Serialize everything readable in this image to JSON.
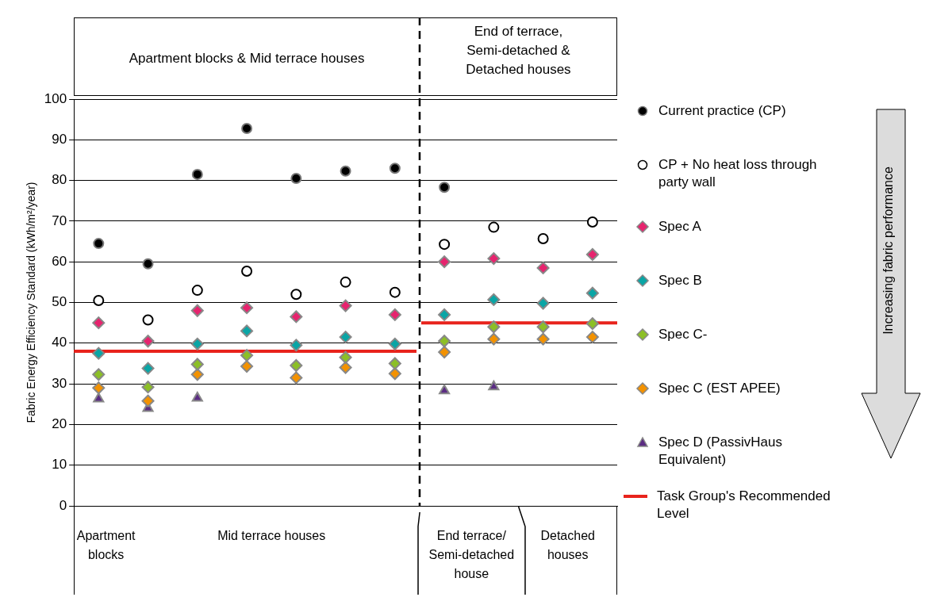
{
  "chart_data": {
    "type": "scatter",
    "ylabel": "Fabric Energy Efficiency Standard (kWh/m²/year)",
    "categories": [
      null,
      null,
      null,
      null,
      null,
      null,
      null,
      null,
      null,
      null,
      null
    ],
    "series": [
      {
        "name": "Current practice (CP)",
        "color": "#000000",
        "marker": "circle",
        "values": [
          64.5,
          59.5,
          81.5,
          92.8,
          80.5,
          82.3,
          83,
          78.3,
          null,
          null,
          null
        ]
      },
      {
        "name": "CP + No heat loss through party wall",
        "color": "#ffffff",
        "marker": "circle",
        "values": [
          50.5,
          45.7,
          53,
          57.7,
          52,
          55,
          52.5,
          64.3,
          68.5,
          65.7,
          69.8
        ]
      },
      {
        "name": "Spec A",
        "color": "#e6246e",
        "marker": "diamond",
        "values": [
          45,
          40.5,
          48,
          48.7,
          46.5,
          49.2,
          47,
          60,
          60.8,
          58.5,
          61.8
        ]
      },
      {
        "name": "Spec B",
        "color": "#0aa5a5",
        "marker": "diamond",
        "values": [
          37.5,
          33.8,
          39.8,
          43,
          39.5,
          41.5,
          39.8,
          47,
          50.7,
          49.8,
          52.3
        ]
      },
      {
        "name": "Spec C-",
        "color": "#8cbf26",
        "marker": "diamond",
        "values": [
          32.3,
          29.2,
          34.8,
          37,
          34.5,
          36.5,
          35,
          40.5,
          44,
          44,
          44.8
        ]
      },
      {
        "name": "Spec C (EST APEE)",
        "color": "#f39200",
        "marker": "diamond",
        "values": [
          29,
          25.8,
          32.3,
          34.3,
          31.5,
          34,
          32.5,
          37.8,
          41,
          41,
          41.5
        ]
      },
      {
        "name": "Spec D (PassivHaus Equivalent)",
        "color": "#5b2c83",
        "marker": "triangle",
        "values": [
          26.3,
          24,
          26.5,
          null,
          null,
          null,
          null,
          28.3,
          29.3,
          null,
          null
        ]
      }
    ],
    "ref_lines": [
      {
        "axis": "y",
        "value": 38,
        "label": "Task Group's Recommended Level",
        "color": "#e8231c"
      },
      {
        "axis": "y",
        "value": 45,
        "color": "#e8231c"
      }
    ],
    "ylim": [
      0,
      100
    ],
    "yticks": [
      0,
      10,
      20,
      30,
      40,
      50,
      60,
      70,
      80,
      90,
      100
    ],
    "grid": "y",
    "legend": "right",
    "annotations": [
      "Apartment blocks & Mid terrace houses",
      "End of terrace,\nSemi-detached  &\nDetached houses",
      "Apartment\nblocks",
      "Mid terrace houses",
      "End terrace/\nSemi-detached\nhouse",
      "Detached\nhouses",
      "Increasing fabric performance"
    ]
  }
}
